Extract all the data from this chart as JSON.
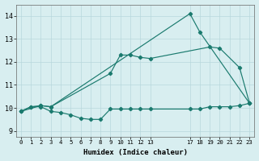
{
  "line1_x": [
    0,
    1,
    2,
    3,
    17,
    18,
    23
  ],
  "line1_y": [
    9.85,
    10.05,
    10.1,
    10.05,
    14.1,
    13.3,
    10.2
  ],
  "line2_x": [
    0,
    2,
    3,
    9,
    10,
    11,
    12,
    13,
    19,
    20,
    22,
    23
  ],
  "line2_y": [
    9.85,
    10.1,
    10.05,
    11.5,
    12.3,
    12.3,
    12.2,
    12.15,
    12.65,
    12.6,
    11.75,
    10.2
  ],
  "line3_x": [
    0,
    1,
    2,
    3,
    4,
    5,
    6,
    7,
    8,
    9,
    10,
    11,
    12,
    13,
    17,
    18,
    19,
    20,
    21,
    22,
    23
  ],
  "line3_y": [
    9.85,
    10.05,
    10.05,
    9.85,
    9.8,
    9.7,
    9.55,
    9.5,
    9.5,
    9.95,
    9.95,
    9.95,
    9.95,
    9.95,
    9.95,
    9.95,
    10.05,
    10.05,
    10.05,
    10.1,
    10.2
  ],
  "line_color": "#1a7a6e",
  "bg_color": "#d8eef0",
  "grid_color": "#b8d8dc",
  "xlabel": "Humidex (Indice chaleur)",
  "xticks": [
    0,
    1,
    2,
    3,
    4,
    5,
    6,
    7,
    8,
    9,
    10,
    11,
    12,
    13,
    17,
    18,
    19,
    20,
    21,
    22,
    23
  ],
  "xtick_labels": [
    "0",
    "1",
    "2",
    "3",
    "4",
    "5",
    "6",
    "7",
    "8",
    "9",
    "10",
    "11",
    "12",
    "13",
    "17",
    "18",
    "19",
    "20",
    "21",
    "22",
    "23"
  ],
  "yticks": [
    9,
    10,
    11,
    12,
    13,
    14
  ],
  "ylim": [
    8.75,
    14.5
  ],
  "xlim": [
    -0.5,
    23.5
  ]
}
